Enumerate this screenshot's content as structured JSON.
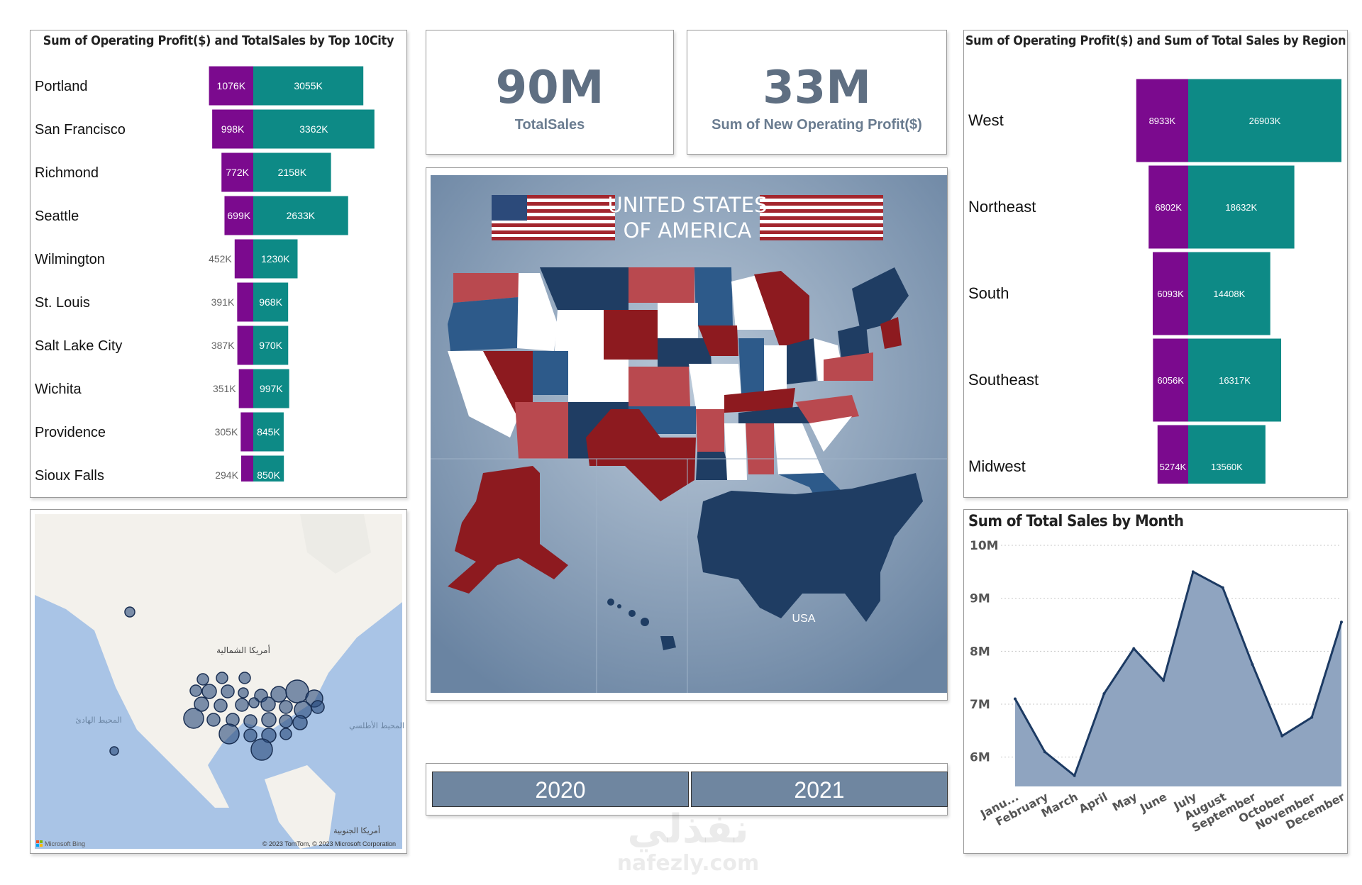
{
  "colors": {
    "profit": "#7b0a8e",
    "sales": "#0d8a86",
    "kpi": "#5f6f82",
    "area_fill": "#8fa4c0",
    "line": "#1c3a63",
    "slicer": "#6f86a0",
    "map_red": "#8d1a1f",
    "map_navy": "#1f3d63",
    "map_blue": "#2d5a8a"
  },
  "city_chart": {
    "title": "Sum of Operating Profit($) and TotalSales by Top 10City"
  },
  "region_chart": {
    "title": "Sum of Operating Profit($) and Sum of Total Sales by Region"
  },
  "kpis": [
    {
      "value": "90M",
      "label": "TotalSales"
    },
    {
      "value": "33M",
      "label": "Sum of New Operating Profit($)"
    }
  ],
  "map_image": {
    "title_line1": "UNITED STATES",
    "title_line2": "OF AMERICA",
    "usa_label": "USA"
  },
  "bing_map": {
    "label_na": "أمريكا الشمالية",
    "label_pacific": "المحيط الهادئ",
    "label_atlantic": "المحيط الأطلسي",
    "label_sa": "أمريكا الجنوبية",
    "brand": "Microsoft Bing",
    "copyright": "© 2023 TomTom, © 2023 Microsoft Corporation"
  },
  "slicer": {
    "options": [
      "2020",
      "2021"
    ]
  },
  "watermark": {
    "arabic": "نفذلي",
    "latin": "nafezly.com"
  },
  "chart_data": [
    {
      "type": "bar",
      "title": "Sum of Operating Profit($) and TotalSales by Top 10City",
      "categories": [
        "Portland",
        "San Francisco",
        "Richmond",
        "Seattle",
        "Wilmington",
        "St. Louis",
        "Salt Lake City",
        "Wichita",
        "Providence",
        "Sioux Falls"
      ],
      "series": [
        {
          "name": "Sum of Operating Profit($)",
          "values": [
            1076,
            998,
            772,
            699,
            452,
            391,
            387,
            351,
            305,
            294
          ],
          "labels": [
            "1076K",
            "998K",
            "772K",
            "699K",
            "452K",
            "391K",
            "387K",
            "351K",
            "305K",
            "294K"
          ]
        },
        {
          "name": "TotalSales",
          "values": [
            3055,
            3362,
            2158,
            2633,
            1230,
            968,
            970,
            997,
            845,
            850
          ],
          "labels": [
            "3055K",
            "3362K",
            "2158K",
            "2633K",
            "1230K",
            "968K",
            "970K",
            "997K",
            "845K",
            "850K"
          ]
        }
      ],
      "orientation": "horizontal",
      "units": "K"
    },
    {
      "type": "bar",
      "title": "Sum of Operating Profit($) and Sum of Total Sales by Region",
      "categories": [
        "West",
        "Northeast",
        "South",
        "Southeast",
        "Midwest"
      ],
      "series": [
        {
          "name": "Sum of Operating Profit($)",
          "values": [
            8933,
            6802,
            6093,
            6056,
            5274
          ],
          "labels": [
            "8933K",
            "6802K",
            "6093K",
            "6056K",
            "5274K"
          ]
        },
        {
          "name": "Sum of Total Sales",
          "values": [
            26903,
            18632,
            14408,
            16317,
            13560
          ],
          "labels": [
            "26903K",
            "18632K",
            "14408K",
            "16317K",
            "13560K"
          ]
        }
      ],
      "orientation": "horizontal",
      "units": "K"
    },
    {
      "type": "area",
      "title": "Sum of Total Sales by Month",
      "x": [
        "Janu...",
        "February",
        "March",
        "April",
        "May",
        "June",
        "July",
        "August",
        "September",
        "October",
        "November",
        "December"
      ],
      "values": [
        7.1,
        6.1,
        5.65,
        7.2,
        8.05,
        7.45,
        9.5,
        9.2,
        7.75,
        6.4,
        6.75,
        8.55
      ],
      "yticks": [
        "10M",
        "9M",
        "8M",
        "7M",
        "6M"
      ],
      "ylim": [
        5.5,
        10
      ],
      "units": "M"
    }
  ]
}
